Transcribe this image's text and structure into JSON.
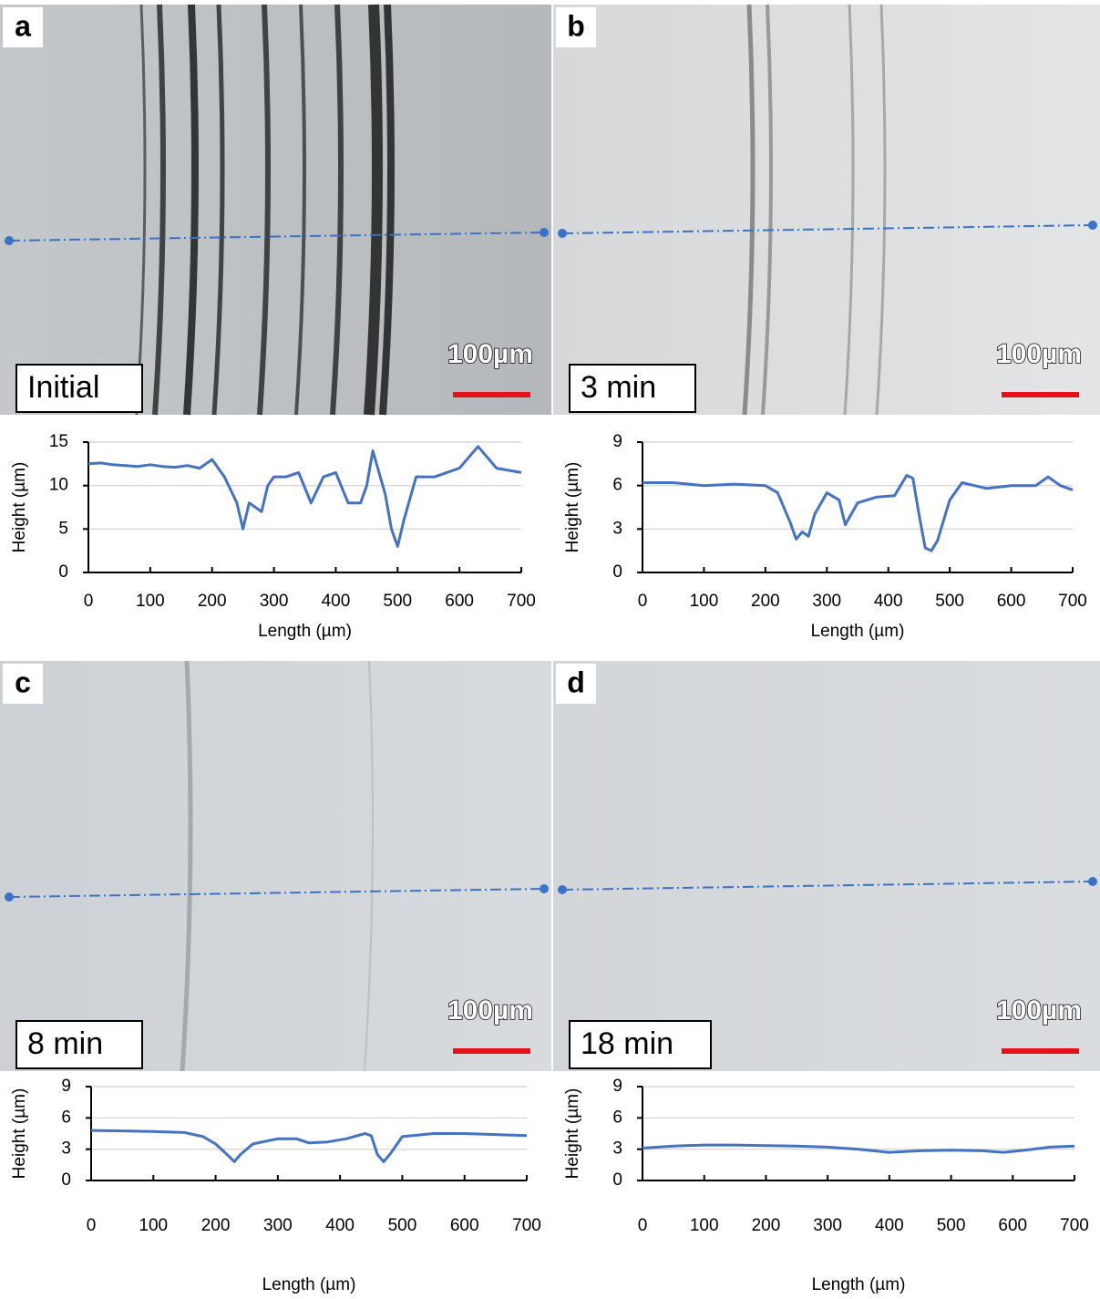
{
  "chart_data": [
    {
      "type": "line",
      "panel_label": "a",
      "image_label": "Initial",
      "scale_bar_label": "100µm",
      "x_label": "Length (µm)",
      "y_label": "Height (µm)",
      "color": "#4472c4",
      "grid": true,
      "xlim": [
        0,
        700
      ],
      "xticks": [
        0,
        100,
        200,
        300,
        400,
        500,
        600,
        700
      ],
      "ylim": [
        0,
        15
      ],
      "yticks": [
        0,
        5,
        10,
        15
      ],
      "x": [
        0,
        20,
        40,
        60,
        80,
        100,
        120,
        140,
        160,
        180,
        200,
        220,
        240,
        250,
        260,
        280,
        290,
        300,
        320,
        340,
        360,
        380,
        400,
        420,
        440,
        450,
        460,
        480,
        490,
        500,
        510,
        530,
        560,
        600,
        630,
        660,
        700
      ],
      "values": [
        12.5,
        12.6,
        12.4,
        12.3,
        12.2,
        12.4,
        12.2,
        12.1,
        12.3,
        12,
        13,
        11,
        8,
        5,
        8,
        7,
        10,
        11,
        11,
        11.5,
        8,
        11,
        11.5,
        8,
        8,
        10,
        14,
        9,
        5,
        3,
        6,
        11,
        11,
        12,
        14.5,
        12,
        11.5
      ]
    },
    {
      "type": "line",
      "panel_label": "b",
      "image_label": "3 min",
      "scale_bar_label": "100µm",
      "x_label": "Length (µm)",
      "y_label": "Height (µm)",
      "color": "#4472c4",
      "grid": true,
      "xlim": [
        0,
        700
      ],
      "xticks": [
        0,
        100,
        200,
        300,
        400,
        500,
        600,
        700
      ],
      "ylim": [
        0,
        9
      ],
      "yticks": [
        0,
        3,
        6,
        9
      ],
      "x": [
        0,
        50,
        100,
        150,
        200,
        220,
        240,
        250,
        260,
        270,
        280,
        300,
        320,
        330,
        350,
        380,
        410,
        430,
        440,
        450,
        460,
        470,
        480,
        500,
        520,
        560,
        600,
        640,
        660,
        680,
        700
      ],
      "values": [
        6.2,
        6.2,
        6.0,
        6.1,
        6.0,
        5.5,
        3.5,
        2.3,
        2.8,
        2.5,
        4.0,
        5.5,
        5.0,
        3.3,
        4.8,
        5.2,
        5.3,
        6.7,
        6.5,
        4.0,
        1.7,
        1.5,
        2.2,
        5.0,
        6.2,
        5.8,
        6.0,
        6.0,
        6.6,
        6.0,
        5.7
      ]
    },
    {
      "type": "line",
      "panel_label": "c",
      "image_label": "8 min",
      "scale_bar_label": "100µm",
      "x_label": "Length (µm)",
      "y_label": "Height (µm)",
      "color": "#4472c4",
      "grid": true,
      "xlim": [
        0,
        700
      ],
      "xticks": [
        0,
        100,
        200,
        300,
        400,
        500,
        600,
        700
      ],
      "ylim": [
        0,
        9
      ],
      "yticks": [
        0,
        3,
        6,
        9
      ],
      "x": [
        0,
        100,
        150,
        180,
        200,
        220,
        230,
        240,
        260,
        300,
        330,
        350,
        380,
        410,
        440,
        450,
        460,
        470,
        480,
        500,
        550,
        600,
        650,
        700
      ],
      "values": [
        4.8,
        4.7,
        4.6,
        4.2,
        3.5,
        2.4,
        1.8,
        2.5,
        3.5,
        4.0,
        4.0,
        3.6,
        3.7,
        4.0,
        4.5,
        4.3,
        2.5,
        1.8,
        2.5,
        4.2,
        4.5,
        4.5,
        4.4,
        4.3
      ]
    },
    {
      "type": "line",
      "panel_label": "d",
      "image_label": "18 min",
      "scale_bar_label": "100µm",
      "x_label": "Length (µm)",
      "y_label": "Height (µm)",
      "color": "#4472c4",
      "grid": true,
      "xlim": [
        0,
        700
      ],
      "xticks": [
        0,
        100,
        200,
        300,
        400,
        500,
        600,
        700
      ],
      "ylim": [
        0,
        9
      ],
      "yticks": [
        0,
        3,
        6,
        9
      ],
      "x": [
        0,
        50,
        100,
        150,
        200,
        250,
        300,
        350,
        400,
        450,
        500,
        550,
        585,
        620,
        660,
        700
      ],
      "values": [
        3.1,
        3.3,
        3.4,
        3.4,
        3.35,
        3.3,
        3.2,
        3.0,
        2.7,
        2.85,
        2.9,
        2.85,
        2.7,
        2.9,
        3.2,
        3.3
      ]
    }
  ]
}
